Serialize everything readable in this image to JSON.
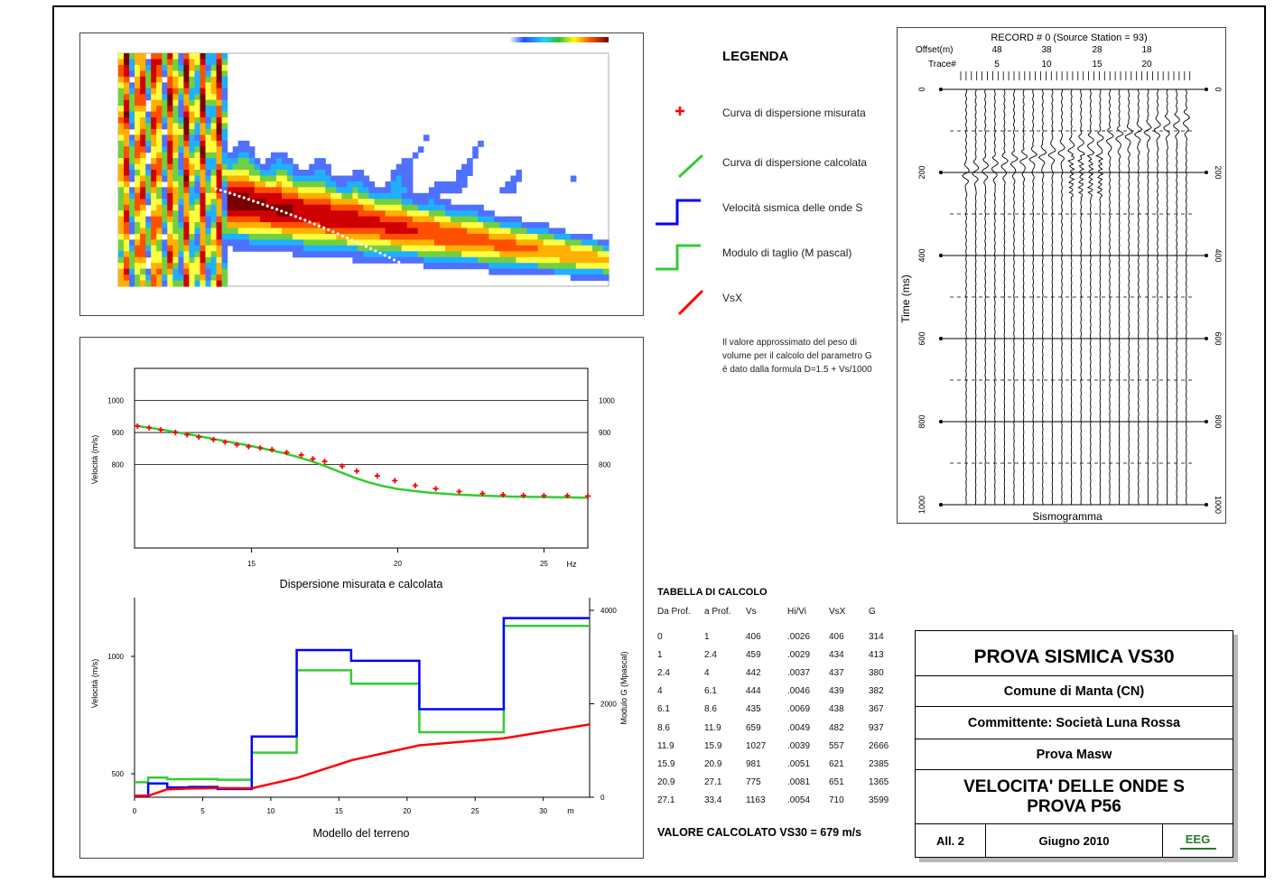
{
  "legend": {
    "title": "LEGENDA",
    "items": [
      {
        "label": "Curva di dispersione misurata",
        "color": "#ff0000",
        "symbol": "cross"
      },
      {
        "label": "Curva di dispersione calcolata",
        "color": "#33cc33",
        "symbol": "line"
      },
      {
        "label": "Velocità sismica delle onde S",
        "color": "#0000ff",
        "symbol": "step"
      },
      {
        "label": "Modulo di taglio (M pascal)",
        "color": "#33cc33",
        "symbol": "step"
      },
      {
        "label": "VsX",
        "color": "#ff0000",
        "symbol": "line"
      }
    ],
    "note": "Il valore approssimato del peso di volume per il calcolo del parametro G è dato dalla formula D=1.5 + Vs/1000"
  },
  "colors": {
    "measured": "#ff0000",
    "calculated": "#33cc33",
    "vs": "#0000ff",
    "g": "#33cc33",
    "vsx": "#ff0000"
  },
  "chart_data": [
    {
      "type": "heatmap",
      "name": "dispersion-image",
      "picks_color": "#ffffff"
    },
    {
      "type": "scatter",
      "name": "dispersion",
      "xlabel": "Dispersione misurata e calcolata",
      "ylabel": "Velocità (m/s)",
      "x_unit": "Hz",
      "xlim": [
        11,
        26.5
      ],
      "ylim": [
        540,
        1100
      ],
      "xticks": [
        15,
        20,
        25
      ],
      "yticks": [
        1000,
        900,
        800
      ],
      "measured": {
        "x": [
          11.1,
          11.5,
          11.9,
          12.4,
          12.8,
          13.2,
          13.7,
          14.1,
          14.5,
          14.9,
          15.3,
          15.7,
          16.2,
          16.7,
          17.1,
          17.5,
          18.1,
          18.6,
          19.3,
          19.9,
          20.6,
          21.3,
          22.1,
          22.9,
          23.6,
          24.3,
          25.0,
          25.8,
          26.5
        ],
        "y": [
          920,
          915,
          908,
          900,
          893,
          886,
          878,
          870,
          862,
          856,
          852,
          847,
          838,
          830,
          818,
          810,
          795,
          780,
          765,
          750,
          735,
          725,
          716,
          710,
          706,
          704,
          703,
          703,
          702
        ]
      },
      "calculated": {
        "x": [
          11,
          12,
          13,
          14,
          15,
          16,
          16.5,
          17,
          17.5,
          18,
          18.5,
          19,
          19.5,
          20,
          21,
          22,
          23,
          24,
          25,
          26.5
        ],
        "y": [
          922,
          908,
          892,
          875,
          858,
          838,
          826,
          812,
          796,
          778,
          760,
          745,
          733,
          724,
          713,
          707,
          703,
          700,
          699,
          697
        ]
      }
    },
    {
      "type": "line",
      "name": "soil-model",
      "xlabel": "Modello del terreno",
      "ylabel": "Velocità (m/s)",
      "y2label": "Modulo G (Mpascal)",
      "x_unit": "m",
      "xlim": [
        0,
        33.4
      ],
      "ylim": [
        400,
        1250
      ],
      "y2lim": [
        0,
        4000
      ],
      "xticks": [
        0,
        5,
        10,
        15,
        20,
        25,
        30
      ],
      "yticks": [
        1000,
        500
      ],
      "y2ticks": [
        4000,
        2000,
        0
      ],
      "layers_from": [
        0,
        1,
        2.4,
        4,
        6.1,
        8.6,
        11.9,
        15.9,
        20.9,
        27.1
      ],
      "layers_to": [
        1,
        2.4,
        4,
        6.1,
        8.6,
        11.9,
        15.9,
        20.9,
        27.1,
        33.4
      ],
      "vs": [
        406,
        459,
        442,
        444,
        435,
        659,
        1027,
        981,
        775,
        1163
      ],
      "g": [
        314,
        413,
        380,
        382,
        367,
        937,
        2666,
        2385,
        1365,
        3599
      ],
      "vsx": [
        406,
        434,
        437,
        439,
        438,
        482,
        557,
        621,
        651,
        710
      ]
    },
    {
      "type": "line",
      "name": "seismogram",
      "title": "RECORD # 0 (Source Station = 93)",
      "offset_label": "Offset(m)",
      "trace_label": "Trace#",
      "offsets": [
        "48",
        "38",
        "28",
        "18"
      ],
      "traces": [
        "5",
        "10",
        "15",
        "20"
      ],
      "ylabel": "Time (ms)",
      "yticks": [
        "0",
        "200",
        "400",
        "600",
        "800",
        "1000"
      ],
      "xlabel": "Sismogramma",
      "n_traces": 24,
      "ylim": [
        0,
        1000
      ]
    }
  ],
  "table": {
    "title": "TABELLA DI CALCOLO",
    "headers": [
      "Da Prof.",
      "a Prof.",
      "Vs",
      "Hi/Vi",
      "VsX",
      "G"
    ],
    "rows": [
      [
        "0",
        "1",
        "406",
        ".0026",
        "406",
        "314"
      ],
      [
        "1",
        "2.4",
        "459",
        ".0029",
        "434",
        "413"
      ],
      [
        "2.4",
        "4",
        "442",
        ".0037",
        "437",
        "380"
      ],
      [
        "4",
        "6.1",
        "444",
        ".0046",
        "439",
        "382"
      ],
      [
        "6.1",
        "8.6",
        "435",
        ".0069",
        "438",
        "367"
      ],
      [
        "8.6",
        "11.9",
        "659",
        ".0049",
        "482",
        "937"
      ],
      [
        "11.9",
        "15.9",
        "1027",
        ".0039",
        "557",
        "2666"
      ],
      [
        "15.9",
        "20.9",
        "981",
        ".0051",
        "621",
        "2385"
      ],
      [
        "20.9",
        "27.1",
        "775",
        ".0081",
        "651",
        "1365"
      ],
      [
        "27.1",
        "33.4",
        "1163",
        ".0054",
        "710",
        "3599"
      ]
    ],
    "result": "VALORE CALCOLATO VS30 =  679 m/s"
  },
  "titleblock": {
    "title": "PROVA SISMICA VS30",
    "comune": "Comune di Manta (CN)",
    "committente": "Committente: Società Luna Rossa",
    "prova": "Prova Masw",
    "subtitle1": "VELOCITA' DELLE ONDE S",
    "subtitle2": "PROVA P56",
    "allegato": "All. 2",
    "date": "Giugno 2010",
    "logo": "EEG"
  }
}
